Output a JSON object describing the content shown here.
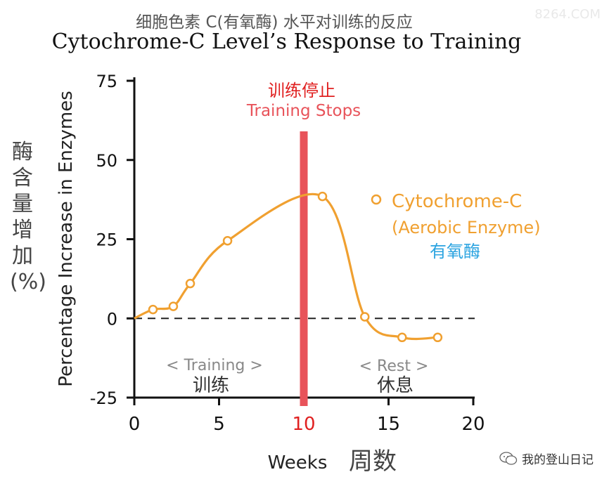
{
  "header": {
    "title_cn": "细胞色素 C(有氧酶) 水平对训练的反应",
    "title_en": "Cytochrome-C Level’s Response to Training",
    "watermark_top": "8264.COM"
  },
  "ylabel_cn": "酶含量增加(%)",
  "footer": {
    "watermark": "我的登山日记",
    "watermark_icon": "wechat-icon"
  },
  "chart_data": {
    "type": "line",
    "title": "Cytochrome-C Level’s Response to Training",
    "xlabel": "Weeks",
    "xlabel_cn": "周数",
    "ylabel": "Percentage Increase in Enzymes",
    "xlim": [
      0,
      20
    ],
    "ylim": [
      -25,
      75
    ],
    "x_ticks": [
      "0",
      "5",
      "10",
      "15",
      "20"
    ],
    "y_ticks": [
      "75",
      "50",
      "25",
      "0",
      "-25"
    ],
    "series": [
      {
        "name": "Cytochrome-C (Aerobic Enzyme)",
        "name_line1": "Cytochrome-C",
        "name_line2": "(Aerobic Enzyme)",
        "name_cn": "有氧酶",
        "color": "#f0a030",
        "x": [
          0,
          1.1,
          2.3,
          3.3,
          5.5,
          11.1,
          13.6,
          15.8,
          17.9
        ],
        "y": [
          0,
          2.8,
          3.8,
          11.0,
          24.5,
          38.5,
          0.5,
          -6.0,
          -6.0
        ],
        "markers_x": [
          1.1,
          2.3,
          3.3,
          5.5,
          11.1,
          13.6,
          15.8,
          17.9
        ],
        "markers_y": [
          2.8,
          3.8,
          11.0,
          24.5,
          38.5,
          0.5,
          -6.0,
          -6.0
        ]
      }
    ],
    "reference_line": {
      "y": 0,
      "style": "dashed"
    },
    "event": {
      "x": 10,
      "label_cn": "训练停止",
      "label_en": "Training Stops",
      "color": "#e8535a"
    },
    "annotations": [
      {
        "text": "< Training >",
        "text_cn": "训练"
      },
      {
        "text": "< Rest >",
        "text_cn": "休息"
      }
    ],
    "legend_placement": "right",
    "grid": false
  }
}
